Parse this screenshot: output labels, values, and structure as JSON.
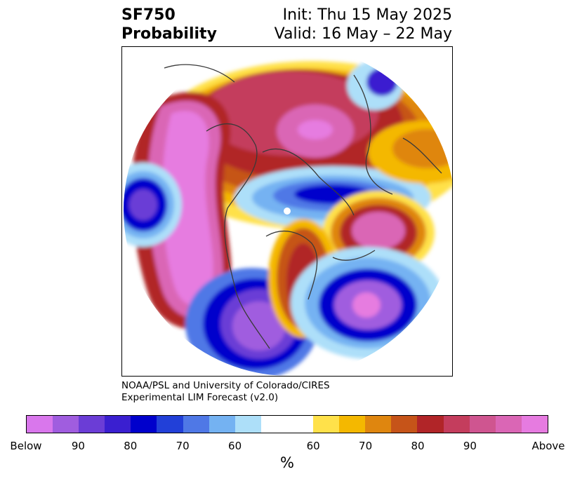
{
  "title": {
    "left_line1": "SF750",
    "left_line2": "Probability",
    "right_line1": "Init: Thu 15 May 2025",
    "right_line2": "Valid: 16 May – 22 May"
  },
  "credit": {
    "line1": "NOAA/PSL and University of Colorado/CIRES",
    "line2": "Experimental LIM Forecast (v2.0)"
  },
  "colorbar": {
    "colors": [
      "#d977ec",
      "#a05ddf",
      "#6b3dd6",
      "#3a1fd0",
      "#0000cc",
      "#2240d8",
      "#4f78e6",
      "#74b2f2",
      "#addff9",
      "#ffffff",
      "#ffffff",
      "#ffe14a",
      "#f4b800",
      "#df860f",
      "#c65419",
      "#b12528",
      "#c43d5d",
      "#cf5590",
      "#da66b5",
      "#e67be0"
    ],
    "labels": [
      "Below",
      "90",
      "80",
      "70",
      "60",
      "60",
      "70",
      "80",
      "90",
      "Above"
    ],
    "unit": "%"
  },
  "map": {
    "projection": "polar stereographic (Northern Hemisphere)",
    "colors": {
      "pink_light": "#e67be0",
      "pink": "#da66b5",
      "magenta": "#c43d5d",
      "red": "#b12528",
      "orange_dark": "#c65419",
      "orange": "#df860f",
      "yellow": "#f4b800",
      "yellow_light": "#ffe14a",
      "blue_pale": "#addff9",
      "blue_light": "#74b2f2",
      "blue": "#4f78e6",
      "blue_deep": "#0000cc",
      "indigo": "#3a1fd0",
      "violet": "#6b3dd6",
      "purple": "#a05ddf"
    }
  }
}
